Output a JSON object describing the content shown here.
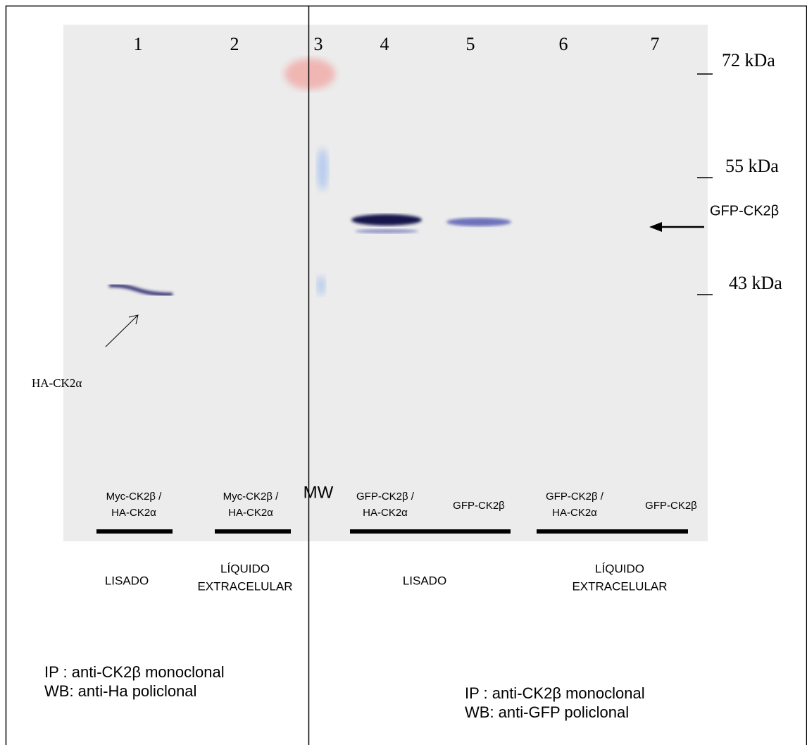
{
  "figure": {
    "lane_numbers": [
      "1",
      "2",
      "3",
      "4",
      "5",
      "6",
      "7"
    ],
    "markers": [
      "72 kDa",
      "55 kDa",
      "43 kDa"
    ],
    "band_labels": {
      "right": "GFP-CK2β",
      "left": "HA-CK2α"
    },
    "mw_label": "MW",
    "lane_labels": [
      [
        "Myc-CK2β /",
        "HA-CK2α"
      ],
      [
        "Myc-CK2β /",
        "HA-CK2α"
      ],
      [
        "GFP-CK2β /",
        "HA-CK2α"
      ],
      [
        "GFP-CK2β"
      ],
      [
        "GFP-CK2β /",
        "HA-CK2α"
      ],
      [
        "GFP-CK2β"
      ]
    ],
    "groups": [
      [
        "LISADO"
      ],
      [
        "LÍQUIDO",
        "EXTRACELULAR"
      ],
      [
        "LISADO"
      ],
      [
        "LÍQUIDO",
        "EXTRACELULAR"
      ]
    ],
    "conditions": [
      [
        "IP   : anti-CK2β  monoclonal",
        "WB: anti-Ha  policlonal"
      ],
      [
        "IP   : anti-CK2β  monoclonal",
        "WB: anti-GFP  policlonal"
      ]
    ]
  }
}
